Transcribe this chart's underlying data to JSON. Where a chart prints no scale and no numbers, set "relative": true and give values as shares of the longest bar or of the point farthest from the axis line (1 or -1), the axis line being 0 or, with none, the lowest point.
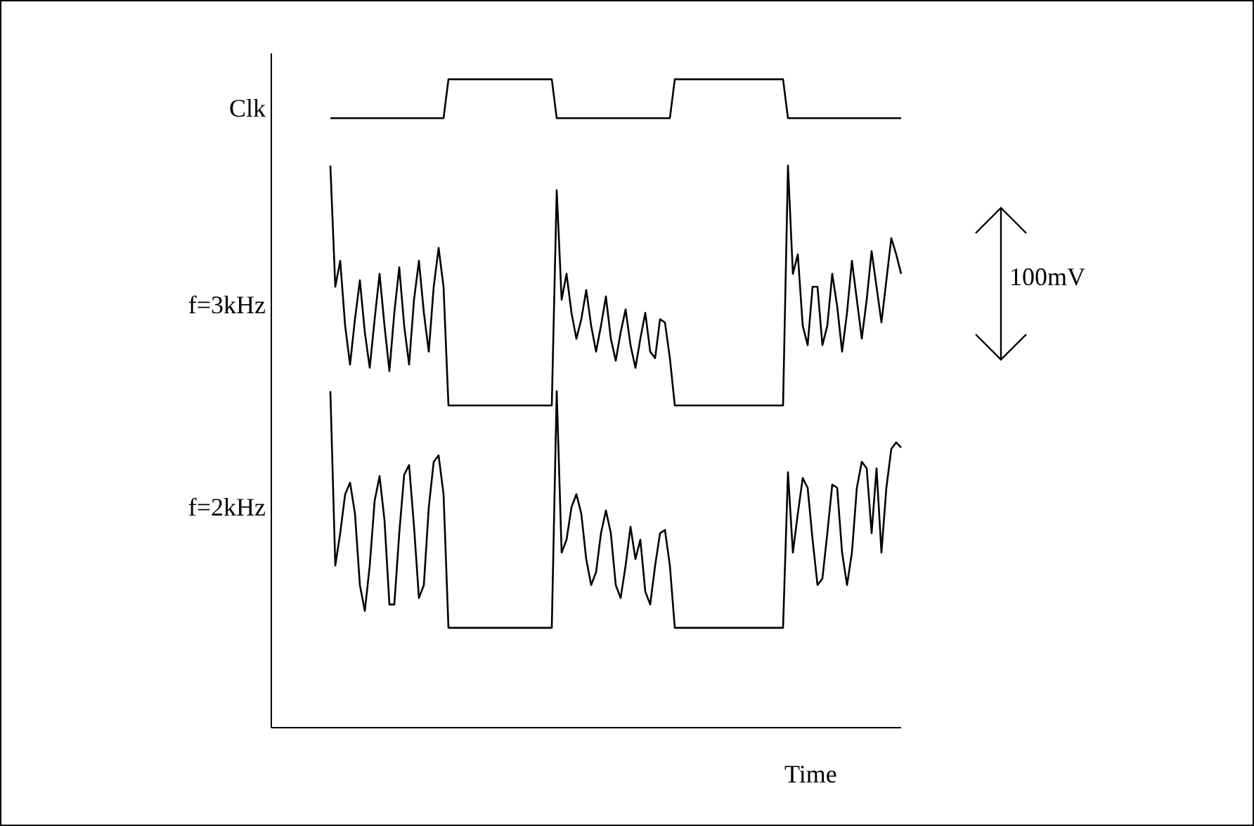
{
  "chart_data": {
    "type": "line",
    "relative": true,
    "xlabel": "Time",
    "annotations": [
      "100mV"
    ],
    "categories": [
      null,
      null,
      null,
      null,
      null,
      null,
      null,
      null,
      null,
      null,
      null,
      null,
      null,
      null,
      null,
      null,
      null,
      null,
      null,
      null,
      null,
      null,
      null,
      null,
      null,
      null,
      null,
      null,
      null,
      null,
      null,
      null,
      null,
      null,
      null,
      null,
      null,
      null,
      null,
      null,
      null,
      null,
      null,
      null,
      null,
      null,
      null,
      null,
      null,
      null,
      null,
      null,
      null,
      null,
      null,
      null,
      null,
      null,
      null,
      null,
      null,
      null,
      null,
      null,
      null,
      null,
      null,
      null,
      null,
      null,
      null,
      null,
      null,
      null,
      null,
      null,
      null,
      null,
      null,
      null,
      null,
      null,
      null,
      null,
      null,
      null,
      null,
      null,
      null,
      null,
      null,
      null,
      null,
      null,
      null,
      null,
      null,
      null,
      null,
      null,
      null,
      null,
      null,
      null,
      null,
      null,
      null,
      null,
      null,
      null,
      null,
      null,
      null,
      null,
      null,
      null,
      null,
      null,
      null,
      null,
      null,
      null,
      null,
      null,
      null,
      null,
      null,
      null,
      null
    ],
    "series": [
      {
        "name": "Clk",
        "color": "#000000",
        "values": [
          null,
          null,
          null,
          null,
          null,
          null,
          null,
          null,
          null,
          null,
          null,
          null,
          0.94,
          0.94,
          0.94,
          0.94,
          0.94,
          0.94,
          0.94,
          0.94,
          0.94,
          0.94,
          0.94,
          0.94,
          0.94,
          0.94,
          0.94,
          0.94,
          0.94,
          0.94,
          0.94,
          0.94,
          0.94,
          0.94,
          0.94,
          0.94,
          1,
          1,
          1,
          1,
          1,
          1,
          1,
          1,
          1,
          1,
          1,
          1,
          1,
          1,
          1,
          1,
          1,
          1,
          1,
          1,
          1,
          1,
          0.94,
          0.94,
          0.94,
          0.94,
          0.94,
          0.94,
          0.94,
          0.94,
          0.94,
          0.94,
          0.94,
          0.94,
          0.94,
          0.94,
          0.94,
          0.94,
          0.94,
          0.94,
          0.94,
          0.94,
          0.94,
          0.94,
          0.94,
          0.94,
          1,
          1,
          1,
          1,
          1,
          1,
          1,
          1,
          1,
          1,
          1,
          1,
          1,
          1,
          1,
          1,
          1,
          1,
          1,
          1,
          1,
          1,
          1,
          0.94,
          0.94,
          0.94,
          0.94,
          0.94,
          0.94,
          0.94,
          0.94,
          0.94,
          0.94,
          0.94,
          0.94,
          0.94,
          0.94,
          0.94,
          0.94,
          0.94,
          0.94,
          0.94,
          0.94,
          0.94,
          0.94,
          0.94,
          0.94
        ]
      },
      {
        "name": "f=3kHz",
        "color": "#000000",
        "values": [
          null,
          null,
          null,
          null,
          null,
          null,
          null,
          null,
          null,
          null,
          null,
          null,
          0.867,
          0.68,
          0.72,
          0.62,
          0.56,
          0.63,
          0.69,
          0.61,
          0.555,
          0.63,
          0.7,
          0.62,
          0.55,
          0.64,
          0.71,
          0.62,
          0.56,
          0.66,
          0.72,
          0.64,
          0.58,
          0.68,
          0.74,
          0.68,
          0.497,
          0.497,
          0.497,
          0.497,
          0.497,
          0.497,
          0.497,
          0.497,
          0.497,
          0.497,
          0.497,
          0.497,
          0.497,
          0.497,
          0.497,
          0.497,
          0.497,
          0.497,
          0.497,
          0.497,
          0.497,
          0.497,
          0.829,
          0.66,
          0.7,
          0.64,
          0.6,
          0.63,
          0.675,
          0.62,
          0.58,
          0.62,
          0.665,
          0.6,
          0.566,
          0.61,
          0.645,
          0.59,
          0.555,
          0.6,
          0.64,
          0.58,
          0.57,
          0.63,
          0.625,
          0.57,
          0.497,
          0.497,
          0.497,
          0.497,
          0.497,
          0.497,
          0.497,
          0.497,
          0.497,
          0.497,
          0.497,
          0.497,
          0.497,
          0.497,
          0.497,
          0.497,
          0.497,
          0.497,
          0.497,
          0.497,
          0.497,
          0.497,
          0.497,
          0.867,
          0.7,
          0.73,
          0.62,
          0.59,
          0.68,
          0.68,
          0.59,
          0.62,
          0.7,
          0.65,
          0.58,
          0.64,
          0.72,
          0.66,
          0.6,
          0.66,
          0.735,
          0.68,
          0.625,
          0.69,
          0.755,
          0.73,
          0.7
        ]
      },
      {
        "name": "f=2kHz",
        "color": "#000000",
        "values": [
          null,
          null,
          null,
          null,
          null,
          null,
          null,
          null,
          null,
          null,
          null,
          null,
          0.519,
          0.25,
          0.3,
          0.36,
          0.378,
          0.33,
          0.22,
          0.18,
          0.25,
          0.35,
          0.388,
          0.32,
          0.19,
          0.19,
          0.3,
          0.39,
          0.405,
          0.31,
          0.2,
          0.22,
          0.34,
          0.41,
          0.42,
          0.36,
          0.154,
          0.154,
          0.154,
          0.154,
          0.154,
          0.154,
          0.154,
          0.154,
          0.154,
          0.154,
          0.154,
          0.154,
          0.154,
          0.154,
          0.154,
          0.154,
          0.154,
          0.154,
          0.154,
          0.154,
          0.154,
          0.154,
          0.519,
          0.27,
          0.29,
          0.34,
          0.36,
          0.33,
          0.26,
          0.22,
          0.24,
          0.3,
          0.335,
          0.3,
          0.22,
          0.2,
          0.25,
          0.31,
          0.26,
          0.29,
          0.21,
          0.19,
          0.25,
          0.3,
          0.305,
          0.25,
          0.154,
          0.154,
          0.154,
          0.154,
          0.154,
          0.154,
          0.154,
          0.154,
          0.154,
          0.154,
          0.154,
          0.154,
          0.154,
          0.154,
          0.154,
          0.154,
          0.154,
          0.154,
          0.154,
          0.154,
          0.154,
          0.154,
          0.154,
          0.394,
          0.27,
          0.33,
          0.385,
          0.37,
          0.29,
          0.22,
          0.23,
          0.3,
          0.375,
          0.37,
          0.27,
          0.22,
          0.27,
          0.37,
          0.41,
          0.4,
          0.3,
          0.4,
          0.27,
          0.37,
          0.43,
          0.44,
          0.432
        ]
      }
    ]
  }
}
